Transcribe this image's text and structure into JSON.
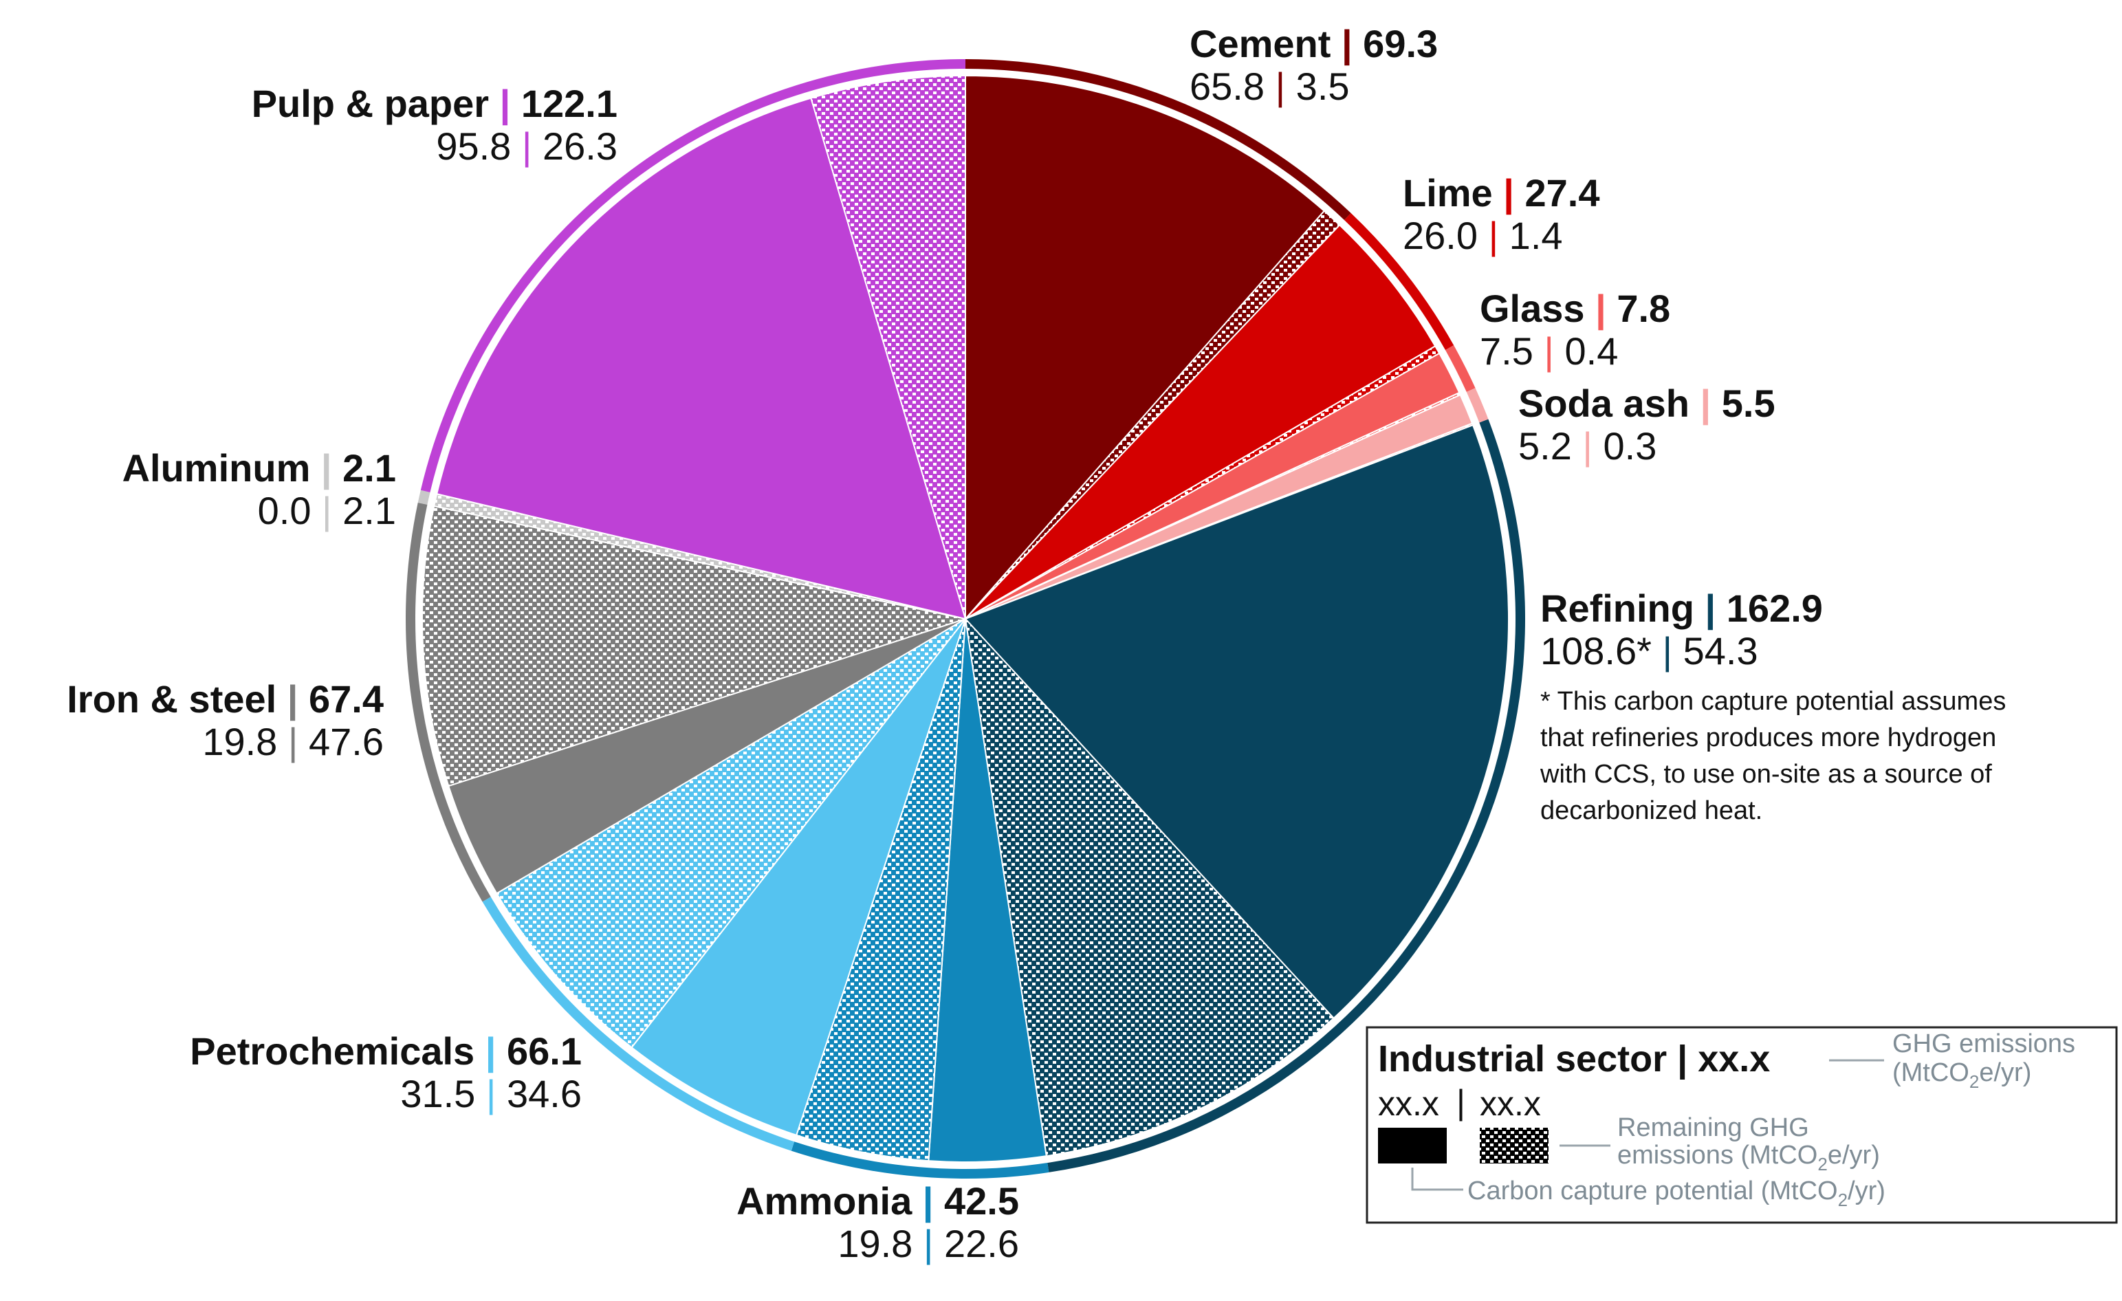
{
  "chart_data": {
    "type": "pie",
    "unit_total": "GHG emissions (MtCO2e/yr)",
    "slices": [
      {
        "name": "Cement",
        "total": "69.3",
        "capture": "65.8",
        "remaining": "3.5",
        "color": "#7b0000"
      },
      {
        "name": "Lime",
        "total": "27.4",
        "capture": "26.0",
        "remaining": "1.4",
        "color": "#d40000"
      },
      {
        "name": "Glass",
        "total": "7.8",
        "capture": "7.5",
        "remaining": "0.4",
        "color": "#f45a5a"
      },
      {
        "name": "Soda ash",
        "total": "5.5",
        "capture": "5.2",
        "remaining": "0.3",
        "color": "#f7a8a8"
      },
      {
        "name": "Refining",
        "total": "162.9",
        "capture": "108.6*",
        "remaining": "54.3",
        "color": "#08445e"
      },
      {
        "name": "Ammonia",
        "total": "42.5",
        "capture": "19.8",
        "remaining": "22.6",
        "color": "#1187bb"
      },
      {
        "name": "Petrochemicals",
        "total": "66.1",
        "capture": "31.5",
        "remaining": "34.6",
        "color": "#55c3f0"
      },
      {
        "name": "Iron & steel",
        "total": "67.4",
        "capture": "19.8",
        "remaining": "47.6",
        "color": "#7d7d7d"
      },
      {
        "name": "Aluminum",
        "total": "2.1",
        "capture": "0.0",
        "remaining": "2.1",
        "color": "#c8c8c8"
      },
      {
        "name": "Pulp & paper",
        "total": "122.1",
        "capture": "95.8",
        "remaining": "26.3",
        "color": "#be41d6"
      }
    ],
    "footnote": [
      "* This carbon capture potential assumes",
      "that refineries produces more hydrogen",
      "with CCS, to use on-site as a source of",
      "decarbonized heat."
    ],
    "legend": {
      "title": "Industrial sector | xx.x",
      "sub_left": "xx.x",
      "sub_sep": "|",
      "sub_right": "xx.x",
      "ghg_line1": "GHG emissions",
      "ghg_line2_pre": "(MtCO",
      "ghg_line2_sub": "2",
      "ghg_line2_post": "e/yr)",
      "rem_line1": "Remaining GHG",
      "rem_line2_pre": "emissions (MtCO",
      "rem_line2_sub": "2",
      "rem_line2_post": "e/yr)",
      "cap_pre": "Carbon capture potential (MtCO",
      "cap_sub": "2",
      "cap_post": "/yr)"
    }
  }
}
